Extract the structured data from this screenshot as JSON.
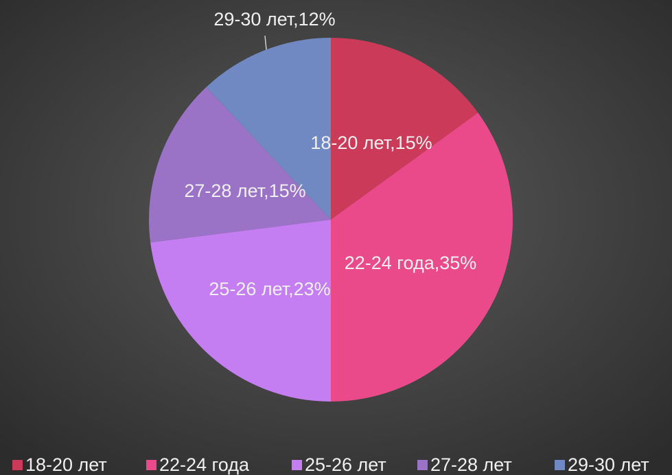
{
  "chart_data": {
    "type": "pie",
    "categories": [
      "18-20 лет",
      "22-24 года",
      "25-26 лет",
      "27-28 лет",
      "29-30 лет"
    ],
    "values": [
      15,
      35,
      23,
      15,
      12
    ],
    "value_labels": [
      "18-20 лет,15%",
      "22-24 года,35%",
      "25-26 лет,23%",
      "27-28 лет,15%",
      "29-30 лет,12%"
    ],
    "colors": [
      "#cc3a5a",
      "#ea4a8a",
      "#c57ef2",
      "#9a72c6",
      "#7189c2"
    ],
    "legend": "bottom"
  }
}
